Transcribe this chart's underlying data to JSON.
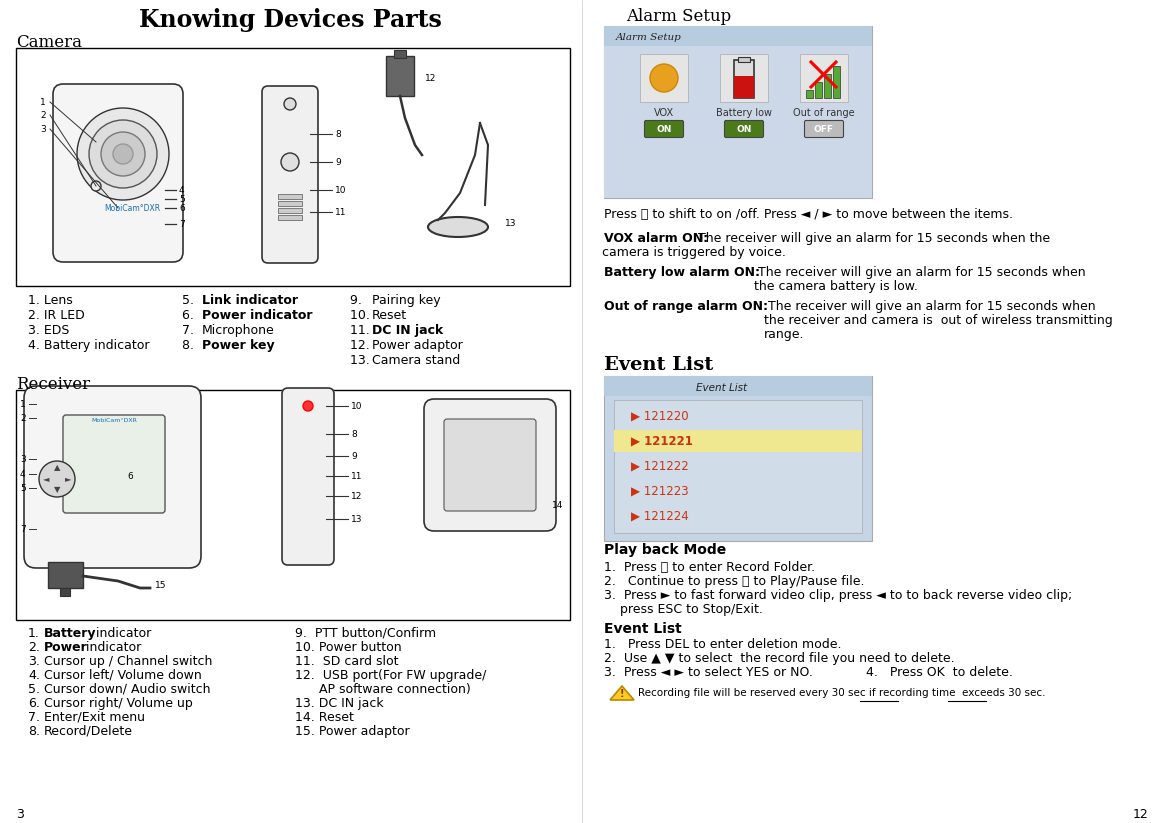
{
  "title": "Knowing Devices Parts",
  "bg": "#ffffff",
  "cam_section": "Camera",
  "rec_section": "Receiver",
  "alarm_section": "Alarm Setup",
  "event_section": "Event List",
  "playback_section": "Play back Mode",
  "cam_col1": [
    "1. Lens",
    "2. IR LED",
    "3. EDS",
    "4. Battery indicator"
  ],
  "cam_col2": [
    "5. Link indicator",
    "6. Power indicator",
    "7. Microphone",
    "8. Power key"
  ],
  "cam_col3": [
    "9. Pairing key",
    "10. Reset",
    "11. DC IN jack",
    "12. Power adaptor",
    "13. Camera stand"
  ],
  "rec_col1_num": [
    "1.",
    "2.",
    "3.",
    "4.",
    "5.",
    "6.",
    "7.",
    "8."
  ],
  "rec_col1_bold": [
    "Battery",
    "Power",
    "",
    "",
    "",
    "",
    "",
    ""
  ],
  "rec_col1_rest": [
    " indicator",
    "  indicator",
    "Cursor up / Channel switch",
    "Cursor left/ Volume down",
    "Cursor down/ Audio switch",
    "Cursor right/ Volume up",
    "Enter/Exit menu",
    "Record/Delete"
  ],
  "rec_col2": [
    "9.  PTT button/Confirm",
    "10. Power button",
    "11.  SD card slot",
    "12.  USB port(For FW upgrade/",
    "      AP software connection)",
    "13. DC IN jack",
    "14. Reset",
    "15. Power adaptor"
  ],
  "alarm_press": "Press Ⓢ to shift to on /off. Press ◄ / ► to move between the items.",
  "vox_label": "VOX alarm ON:",
  "vox_text1": " The receiver will give an alarm for 15 seconds when the",
  "vox_text2": "camera is triggered by voice.",
  "bat_label": "Battery low alarm ON:",
  "bat_text1": " The receiver will give an alarm for 15 seconds when",
  "bat_text2": "the camera battery is low.",
  "oor_label": "Out of range alarm ON:",
  "oor_text1": " The receiver will give an alarm for 15 seconds when",
  "oor_text2": "the receiver and camera is  out of wireless transmitting",
  "oor_text3": "range.",
  "pb_label": "Play back Mode",
  "pb1": "1.  Press Ⓢ to enter Record Folder.",
  "pb2": "2.   Continue to press Ⓢ to Play/Pause file.",
  "pb3a": "3.  Press ► to fast forward video clip, press ◄ to to back reverse video clip;",
  "pb3b": "    press ESC to Stop/Exit.",
  "ev_label": "Event List",
  "ev1": "1.   Press DEL to enter deletion mode.",
  "ev2": "2.  Use ▲ ▼ to select  the record file you need to delete.",
  "ev3a": "3.  Press ◄ ► to select YES or NO.",
  "ev3b": "4.   Press OK  to delete.",
  "page_left": "3",
  "page_right": "12",
  "footer": "Recording file will be reserved every 30 sec if recording time  exceeds 30 sec.",
  "events": [
    "121220",
    "121221",
    "121222",
    "121223",
    "121224"
  ],
  "event_highlight": 1
}
